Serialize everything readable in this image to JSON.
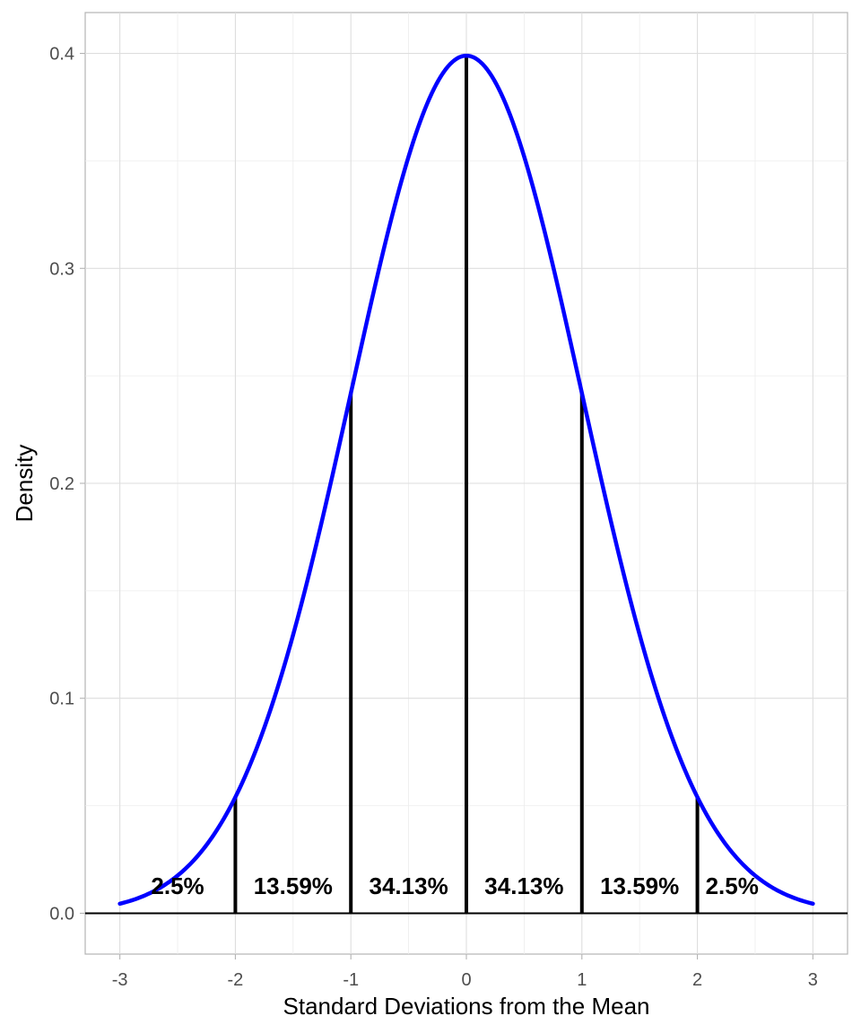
{
  "chart_data": {
    "type": "line",
    "title": "",
    "xlabel": "Standard Deviations from the Mean",
    "ylabel": "Density",
    "xlim": [
      -3.3,
      3.3
    ],
    "ylim": [
      -0.019,
      0.419
    ],
    "grid": true,
    "x_ticks": [
      -3,
      -2,
      -1,
      0,
      1,
      2,
      3
    ],
    "x_tick_labels": [
      "-3",
      "-2",
      "-1",
      "0",
      "1",
      "2",
      "3"
    ],
    "y_ticks": [
      0.0,
      0.1,
      0.2,
      0.3,
      0.4
    ],
    "y_tick_labels": [
      "0.0",
      "0.1",
      "0.2",
      "0.3",
      "0.4"
    ],
    "series": [
      {
        "curve": "normal-density",
        "mean": 0,
        "sd": 1,
        "x_range": [
          -3,
          3
        ],
        "color": "#0000ff"
      }
    ],
    "baseline_y": 0,
    "vertical_lines": [
      {
        "x": -2,
        "y": 0.054
      },
      {
        "x": -1,
        "y": 0.242
      },
      {
        "x": 0,
        "y": 0.399
      },
      {
        "x": 1,
        "y": 0.242
      },
      {
        "x": 2,
        "y": 0.054
      }
    ],
    "annotations": [
      {
        "text": "2.5%",
        "x": -2.5,
        "y": 0.009
      },
      {
        "text": "13.59%",
        "x": -1.5,
        "y": 0.009
      },
      {
        "text": "34.13%",
        "x": -0.5,
        "y": 0.009
      },
      {
        "text": "34.13%",
        "x": 0.5,
        "y": 0.009
      },
      {
        "text": "13.59%",
        "x": 1.5,
        "y": 0.009
      },
      {
        "text": "2.5%",
        "x": 2.3,
        "y": 0.009
      }
    ]
  }
}
